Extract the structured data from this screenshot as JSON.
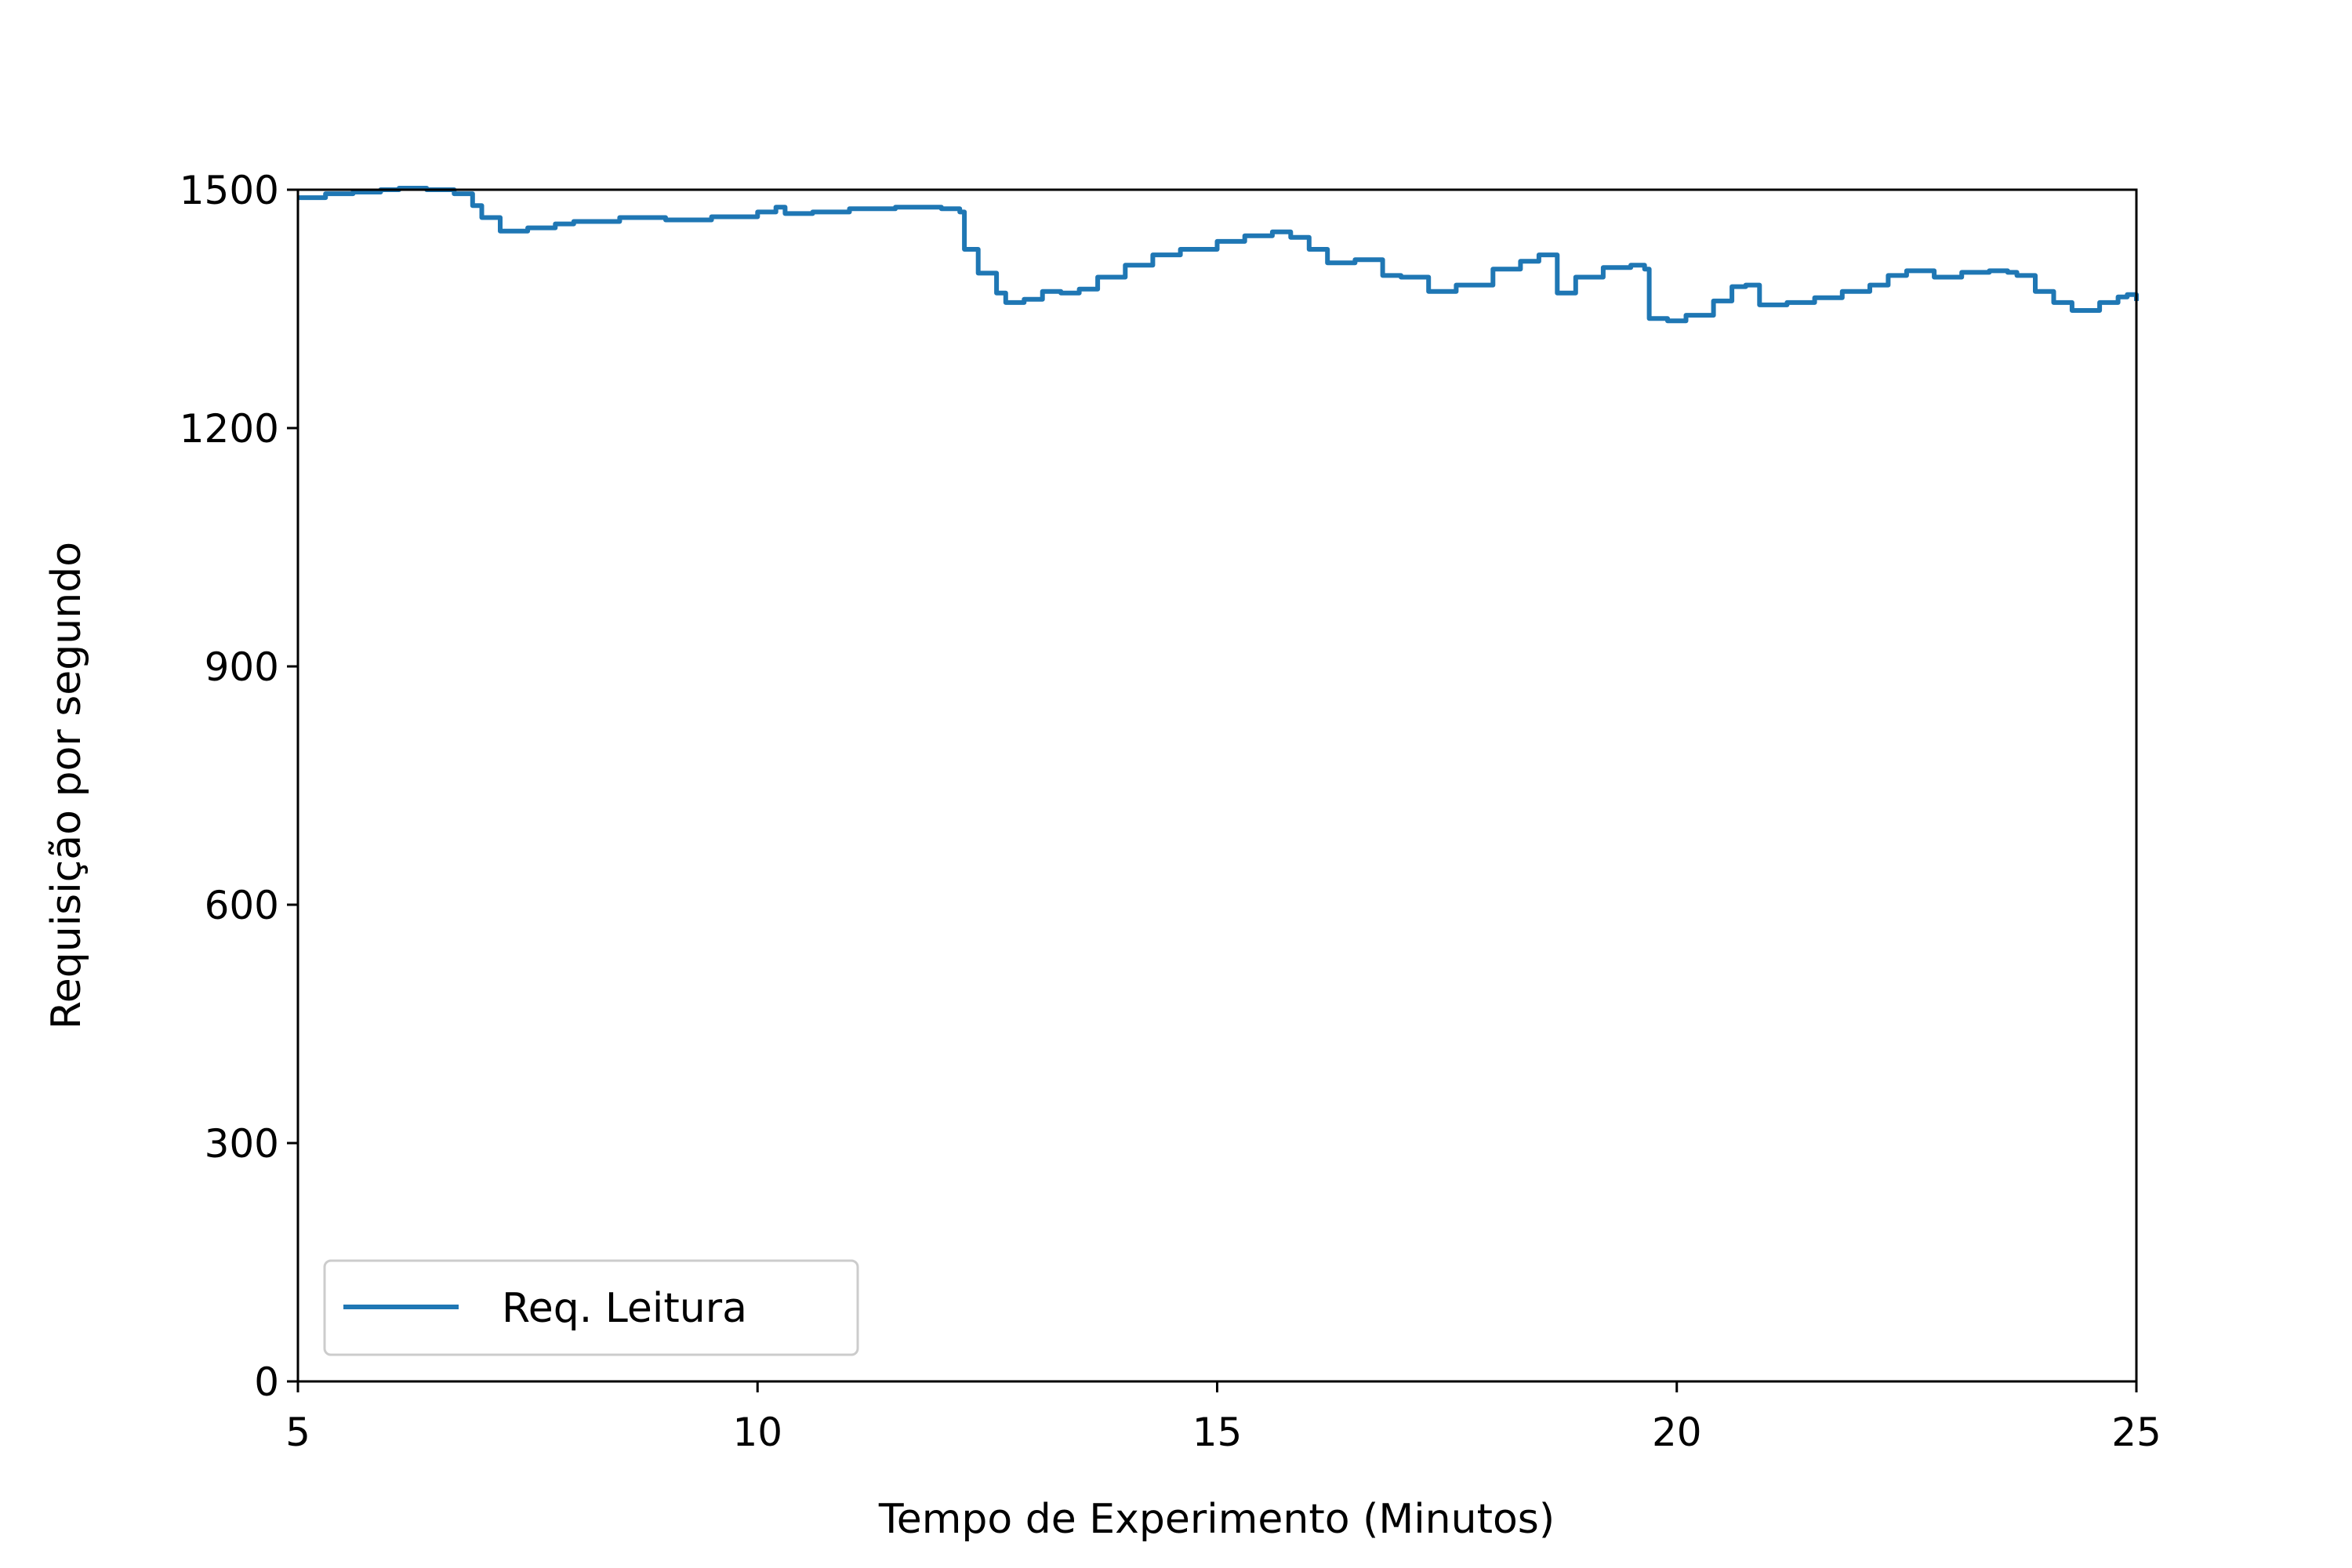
{
  "chart_data": {
    "type": "line",
    "title": "",
    "xlabel": "Tempo de Experimento (Minutos)",
    "ylabel": "Requisição por segundo",
    "xlim": [
      5,
      25
    ],
    "ylim": [
      0,
      1500
    ],
    "xticks": [
      5,
      10,
      15,
      20,
      25
    ],
    "yticks": [
      0,
      300,
      600,
      900,
      1200,
      1500
    ],
    "grid": false,
    "legend": {
      "position": "lower-left",
      "entries": [
        "Req. Leitura"
      ]
    },
    "series": [
      {
        "name": "Req. Leitura",
        "color": "#1f77b4",
        "step": true,
        "x": [
          5.0,
          5.3,
          5.6,
          5.9,
          6.1,
          6.4,
          6.7,
          6.9,
          7.0,
          7.2,
          7.5,
          7.8,
          8.0,
          8.5,
          9.0,
          9.5,
          10.0,
          10.2,
          10.3,
          10.6,
          11.0,
          11.5,
          12.0,
          12.2,
          12.25,
          12.4,
          12.6,
          12.7,
          12.9,
          13.1,
          13.3,
          13.5,
          13.7,
          14.0,
          14.3,
          14.6,
          15.0,
          15.3,
          15.6,
          15.8,
          16.0,
          16.2,
          16.5,
          16.7,
          16.8,
          17.0,
          17.3,
          17.6,
          18.0,
          18.3,
          18.5,
          18.6,
          18.7,
          18.9,
          19.2,
          19.5,
          19.65,
          19.7,
          19.9,
          20.1,
          20.4,
          20.6,
          20.75,
          20.9,
          21.2,
          21.5,
          21.8,
          22.1,
          22.3,
          22.5,
          22.8,
          23.1,
          23.4,
          23.6,
          23.7,
          23.9,
          24.1,
          24.3,
          24.6,
          24.8,
          24.9,
          25.0
        ],
        "y": [
          1490,
          1495,
          1497,
          1500,
          1502,
          1500,
          1495,
          1480,
          1465,
          1448,
          1452,
          1457,
          1460,
          1465,
          1462,
          1466,
          1472,
          1478,
          1470,
          1472,
          1476,
          1478,
          1476,
          1472,
          1425,
          1395,
          1370,
          1358,
          1362,
          1372,
          1370,
          1375,
          1390,
          1405,
          1418,
          1425,
          1435,
          1442,
          1447,
          1440,
          1425,
          1408,
          1412,
          1412,
          1392,
          1390,
          1372,
          1380,
          1400,
          1410,
          1418,
          1418,
          1370,
          1390,
          1402,
          1405,
          1400,
          1338,
          1335,
          1342,
          1360,
          1378,
          1380,
          1355,
          1358,
          1364,
          1372,
          1380,
          1392,
          1398,
          1390,
          1396,
          1398,
          1396,
          1392,
          1372,
          1358,
          1348,
          1358,
          1365,
          1368,
          1360
        ]
      }
    ]
  }
}
